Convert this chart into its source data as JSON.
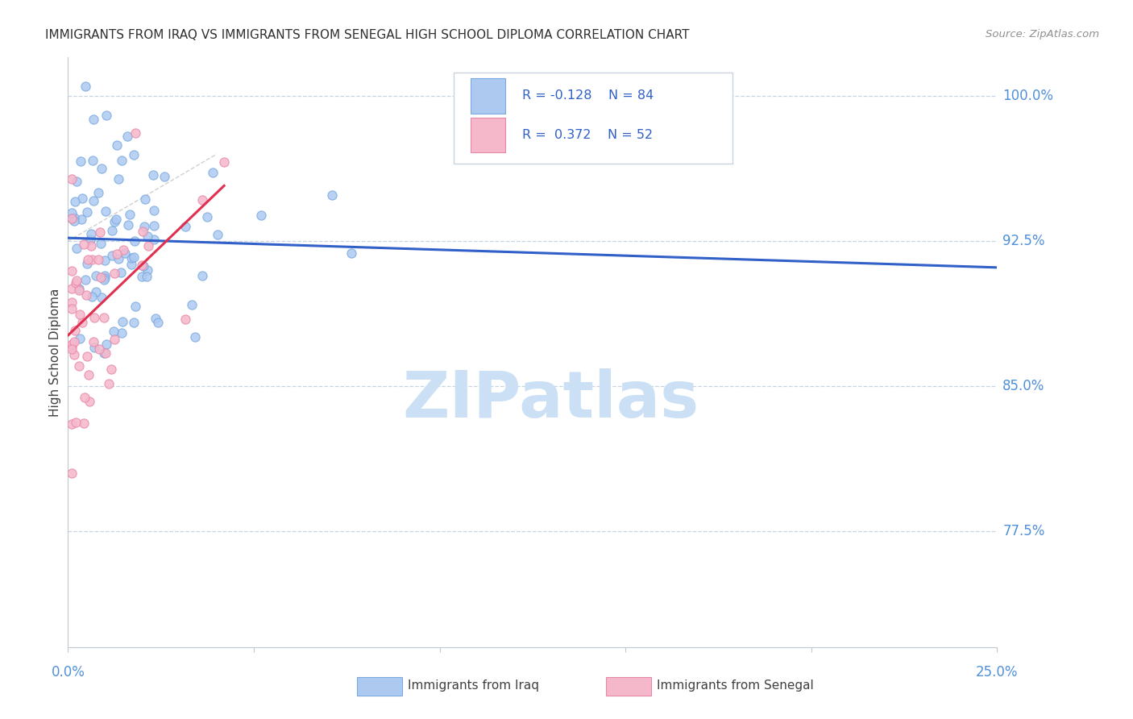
{
  "title": "IMMIGRANTS FROM IRAQ VS IMMIGRANTS FROM SENEGAL HIGH SCHOOL DIPLOMA CORRELATION CHART",
  "source": "Source: ZipAtlas.com",
  "ylabel": "High School Diploma",
  "ytick_labels": [
    "100.0%",
    "92.5%",
    "85.0%",
    "77.5%"
  ],
  "ytick_values": [
    1.0,
    0.925,
    0.85,
    0.775
  ],
  "xlim": [
    0.0,
    0.25
  ],
  "ylim": [
    0.715,
    1.02
  ],
  "watermark": "ZIPatlas",
  "legend_label_iraq": "Immigrants from Iraq",
  "legend_label_senegal": "Immigrants from Senegal",
  "iraq_color": "#adc9f0",
  "iraq_edge_color": "#7aaae0",
  "senegal_color": "#f5b8cb",
  "senegal_edge_color": "#e888a8",
  "trend_iraq_color": "#3060c8",
  "trend_senegal_color": "#e03050",
  "grid_color": "#c8d4e0",
  "title_color": "#303030",
  "axis_label_color": "#5090d8",
  "source_color": "#909090",
  "watermark_color": "#cce0f5",
  "legend_text_color": "#3060c8",
  "ref_line_color": "#d0d0d0"
}
